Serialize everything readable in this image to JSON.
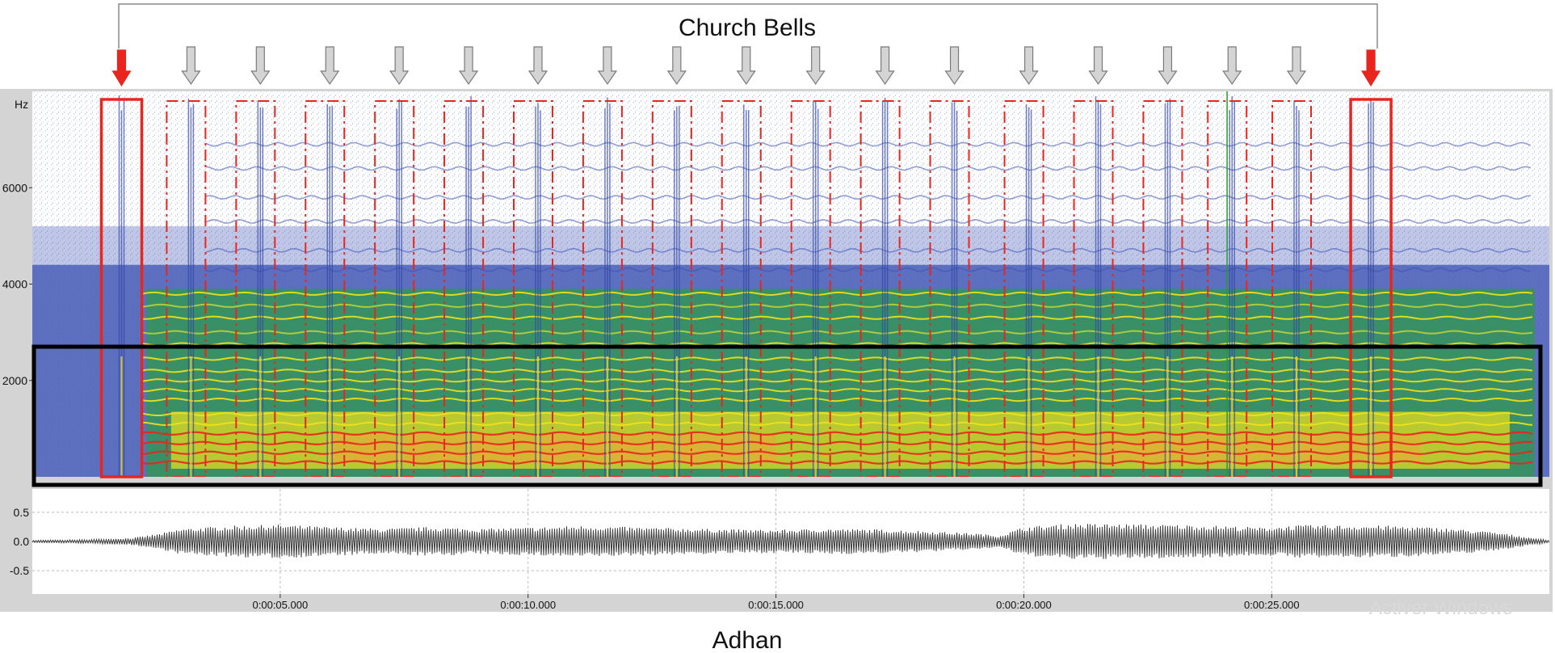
{
  "title": "Church Bells",
  "caption": "Adhan",
  "watermark": "Activer Windows",
  "colors": {
    "band_yellow": "#f0e21a",
    "band_green": "#2e9a48",
    "band_blue": "#4b5fb8",
    "band_red": "#e8261e",
    "frame_red": "#e8261e",
    "arrow_gray": "#d4d4d4",
    "box_black": "#000000"
  },
  "chart_data": [
    {
      "type": "heatmap",
      "title": "",
      "ylabel": "Hz",
      "y_ticks": [
        "6000",
        "4000",
        "2000"
      ],
      "y_tick_values": [
        6000,
        4000,
        2000
      ],
      "ylim": [
        0,
        8000
      ],
      "xlim": [
        0,
        30.6
      ],
      "bell_strike_times": [
        1.8,
        3.2,
        4.6,
        6.0,
        7.4,
        8.8,
        10.2,
        11.6,
        13.0,
        14.4,
        15.8,
        17.2,
        18.6,
        20.1,
        21.5,
        22.9,
        24.2,
        25.5,
        27.0
      ],
      "highlighted_strikes": [
        1.8,
        27.0
      ],
      "harmonic_freqs": [
        300,
        500,
        700,
        900,
        1100,
        1300,
        1600,
        1800,
        2000,
        2200,
        2450,
        2750,
        3000,
        3300,
        3550,
        3800
      ],
      "high_freq_lines": [
        4300,
        4700,
        5300,
        5800,
        6400,
        6900
      ],
      "boxed_frequency_range": [
        0,
        2700
      ]
    },
    {
      "type": "line",
      "title": "",
      "y_ticks": [
        "0.5",
        "0.0",
        "-0.5"
      ],
      "y_tick_values": [
        0.5,
        0.0,
        -0.5
      ],
      "ylim": [
        -0.9,
        0.9
      ],
      "x_ticks": [
        "0:00:05.000",
        "0:00:10.000",
        "0:00:15.000",
        "0:00:20.000",
        "0:00:25.000"
      ],
      "x_tick_values": [
        5,
        10,
        15,
        20,
        25
      ],
      "xlim": [
        0,
        30.6
      ],
      "envelope": {
        "t": [
          0,
          1.0,
          2.0,
          2.6,
          3.0,
          4.0,
          5.0,
          6.0,
          7.0,
          8.0,
          9.0,
          10.0,
          11.0,
          12.0,
          13.0,
          14.0,
          15.0,
          16.0,
          17.0,
          18.0,
          19.0,
          19.5,
          20.0,
          21.0,
          22.0,
          23.0,
          24.0,
          24.8,
          25.5,
          26.5,
          27.5,
          28.5,
          29.5,
          30.2,
          30.6
        ],
        "amp": [
          0.02,
          0.03,
          0.06,
          0.14,
          0.22,
          0.27,
          0.29,
          0.25,
          0.22,
          0.25,
          0.22,
          0.24,
          0.27,
          0.25,
          0.23,
          0.21,
          0.2,
          0.22,
          0.21,
          0.18,
          0.14,
          0.1,
          0.25,
          0.31,
          0.3,
          0.29,
          0.27,
          0.24,
          0.28,
          0.28,
          0.27,
          0.23,
          0.16,
          0.07,
          0.02
        ]
      }
    }
  ]
}
